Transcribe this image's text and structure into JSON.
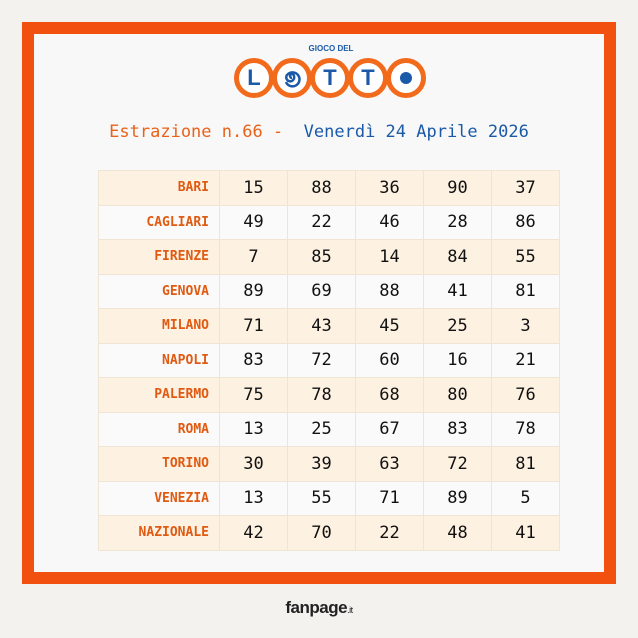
{
  "logo": {
    "top_text": "GIOCO DEL",
    "letters": [
      "L",
      "O",
      "T",
      "T",
      "O"
    ]
  },
  "header": {
    "draw_label": "Estrazione n.66 -",
    "date": "Venerdì 24 Aprile 2026"
  },
  "colors": {
    "frame": "#f2500f",
    "city": "#e05a12",
    "accent_blue": "#1a5aa8",
    "row_alt": "#fdf1e1"
  },
  "results": [
    {
      "city": "BARI",
      "numbers": [
        "15",
        "88",
        "36",
        "90",
        "37"
      ]
    },
    {
      "city": "CAGLIARI",
      "numbers": [
        "49",
        "22",
        "46",
        "28",
        "86"
      ]
    },
    {
      "city": "FIRENZE",
      "numbers": [
        "7",
        "85",
        "14",
        "84",
        "55"
      ]
    },
    {
      "city": "GENOVA",
      "numbers": [
        "89",
        "69",
        "88",
        "41",
        "81"
      ]
    },
    {
      "city": "MILANO",
      "numbers": [
        "71",
        "43",
        "45",
        "25",
        "3"
      ]
    },
    {
      "city": "NAPOLI",
      "numbers": [
        "83",
        "72",
        "60",
        "16",
        "21"
      ]
    },
    {
      "city": "PALERMO",
      "numbers": [
        "75",
        "78",
        "68",
        "80",
        "76"
      ]
    },
    {
      "city": "ROMA",
      "numbers": [
        "13",
        "25",
        "67",
        "83",
        "78"
      ]
    },
    {
      "city": "TORINO",
      "numbers": [
        "30",
        "39",
        "63",
        "72",
        "81"
      ]
    },
    {
      "city": "VENEZIA",
      "numbers": [
        "13",
        "55",
        "71",
        "89",
        "5"
      ]
    },
    {
      "city": "NAZIONALE",
      "numbers": [
        "42",
        "70",
        "22",
        "48",
        "41"
      ]
    }
  ],
  "footer": {
    "brand": "fanpage",
    "tld": ".it"
  }
}
